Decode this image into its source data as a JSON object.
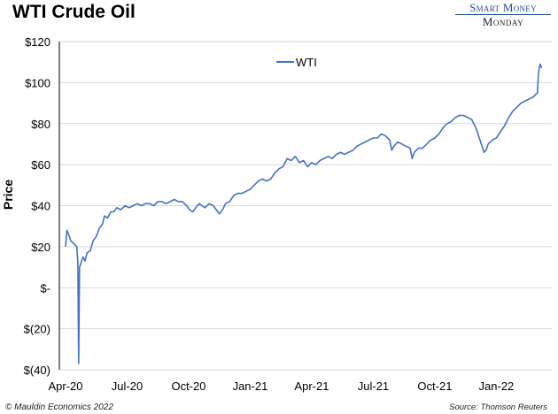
{
  "header": {
    "title": "WTI Crude Oil"
  },
  "brand": {
    "line1": "Smart Money",
    "line2": "Monday"
  },
  "footer": {
    "left": "© Mauldin Economics 2022",
    "right": "Source: Thomson Reuters"
  },
  "colors": {
    "series": "#4472c4",
    "grid": "#d9d9d9",
    "axis": "#000000"
  },
  "chart_data": {
    "type": "line",
    "title": "WTI Crude Oil",
    "ylabel": "Price",
    "xlabel": "",
    "ylim": [
      -40,
      120
    ],
    "yticks": [
      -40,
      -20,
      0,
      20,
      40,
      60,
      80,
      100,
      120
    ],
    "ytick_labels": [
      "$(40)",
      "$(20)",
      "$-",
      "$20",
      "$40",
      "$60",
      "$80",
      "$100",
      "$120"
    ],
    "xlim": [
      0,
      23.4
    ],
    "xticks": [
      0,
      3,
      6,
      9,
      12,
      15,
      18,
      21
    ],
    "xtick_labels": [
      "Apr-20",
      "Jul-20",
      "Oct-20",
      "Jan-21",
      "Apr-21",
      "Jul-21",
      "Oct-21",
      "Jan-22"
    ],
    "grid": "horizontal",
    "legend": "top-center",
    "series": [
      {
        "name": "WTI",
        "color": "#4472c4",
        "points": [
          [
            0.0,
            20
          ],
          [
            0.07,
            28
          ],
          [
            0.15,
            26
          ],
          [
            0.25,
            23
          ],
          [
            0.35,
            22
          ],
          [
            0.45,
            21
          ],
          [
            0.55,
            20
          ],
          [
            0.6,
            12
          ],
          [
            0.64,
            -37
          ],
          [
            0.68,
            10
          ],
          [
            0.75,
            12
          ],
          [
            0.85,
            15
          ],
          [
            0.95,
            13
          ],
          [
            1.05,
            17
          ],
          [
            1.2,
            18
          ],
          [
            1.35,
            23
          ],
          [
            1.5,
            25
          ],
          [
            1.65,
            29
          ],
          [
            1.8,
            31
          ],
          [
            1.9,
            35
          ],
          [
            2.05,
            34
          ],
          [
            2.2,
            37
          ],
          [
            2.35,
            37
          ],
          [
            2.5,
            39
          ],
          [
            2.7,
            38
          ],
          [
            2.9,
            40
          ],
          [
            3.1,
            39
          ],
          [
            3.3,
            40
          ],
          [
            3.5,
            41
          ],
          [
            3.7,
            40
          ],
          [
            3.9,
            41
          ],
          [
            4.1,
            41
          ],
          [
            4.3,
            40
          ],
          [
            4.5,
            42
          ],
          [
            4.7,
            42
          ],
          [
            4.9,
            41
          ],
          [
            5.1,
            42
          ],
          [
            5.3,
            43
          ],
          [
            5.5,
            42
          ],
          [
            5.7,
            42
          ],
          [
            5.9,
            40
          ],
          [
            6.05,
            38
          ],
          [
            6.2,
            37
          ],
          [
            6.35,
            39
          ],
          [
            6.5,
            41
          ],
          [
            6.65,
            40
          ],
          [
            6.8,
            39
          ],
          [
            7.0,
            41
          ],
          [
            7.2,
            40
          ],
          [
            7.35,
            38
          ],
          [
            7.5,
            36
          ],
          [
            7.65,
            38
          ],
          [
            7.8,
            41
          ],
          [
            8.0,
            42
          ],
          [
            8.2,
            45
          ],
          [
            8.4,
            46
          ],
          [
            8.6,
            46
          ],
          [
            8.8,
            47
          ],
          [
            9.0,
            48
          ],
          [
            9.2,
            50
          ],
          [
            9.4,
            52
          ],
          [
            9.6,
            53
          ],
          [
            9.8,
            52
          ],
          [
            10.0,
            53
          ],
          [
            10.2,
            56
          ],
          [
            10.4,
            58
          ],
          [
            10.6,
            59
          ],
          [
            10.8,
            63
          ],
          [
            11.0,
            62
          ],
          [
            11.2,
            64
          ],
          [
            11.4,
            61
          ],
          [
            11.6,
            62
          ],
          [
            11.8,
            59
          ],
          [
            12.0,
            61
          ],
          [
            12.2,
            60
          ],
          [
            12.4,
            62
          ],
          [
            12.6,
            63
          ],
          [
            12.8,
            64
          ],
          [
            13.0,
            63
          ],
          [
            13.2,
            65
          ],
          [
            13.4,
            66
          ],
          [
            13.6,
            65
          ],
          [
            13.8,
            66
          ],
          [
            14.0,
            67
          ],
          [
            14.2,
            69
          ],
          [
            14.4,
            70
          ],
          [
            14.6,
            71
          ],
          [
            14.8,
            72
          ],
          [
            15.0,
            73
          ],
          [
            15.2,
            73
          ],
          [
            15.4,
            75
          ],
          [
            15.6,
            74
          ],
          [
            15.8,
            72
          ],
          [
            15.9,
            67
          ],
          [
            16.0,
            69
          ],
          [
            16.2,
            71
          ],
          [
            16.4,
            70
          ],
          [
            16.6,
            69
          ],
          [
            16.8,
            68
          ],
          [
            16.9,
            63
          ],
          [
            17.0,
            66
          ],
          [
            17.2,
            68
          ],
          [
            17.4,
            68
          ],
          [
            17.6,
            70
          ],
          [
            17.8,
            72
          ],
          [
            18.0,
            73
          ],
          [
            18.2,
            75
          ],
          [
            18.4,
            78
          ],
          [
            18.6,
            80
          ],
          [
            18.8,
            81
          ],
          [
            19.0,
            83
          ],
          [
            19.2,
            84
          ],
          [
            19.4,
            84
          ],
          [
            19.6,
            83
          ],
          [
            19.8,
            82
          ],
          [
            19.9,
            80
          ],
          [
            20.0,
            78
          ],
          [
            20.1,
            75
          ],
          [
            20.2,
            72
          ],
          [
            20.3,
            69
          ],
          [
            20.4,
            66
          ],
          [
            20.5,
            67
          ],
          [
            20.6,
            70
          ],
          [
            20.7,
            71
          ],
          [
            20.8,
            72
          ],
          [
            21.0,
            73
          ],
          [
            21.2,
            76
          ],
          [
            21.4,
            79
          ],
          [
            21.6,
            83
          ],
          [
            21.8,
            86
          ],
          [
            22.0,
            88
          ],
          [
            22.2,
            90
          ],
          [
            22.4,
            91
          ],
          [
            22.6,
            92
          ],
          [
            22.8,
            93
          ],
          [
            23.0,
            95
          ],
          [
            23.05,
            104
          ],
          [
            23.1,
            108
          ],
          [
            23.15,
            109
          ],
          [
            23.2,
            107
          ]
        ]
      }
    ]
  }
}
